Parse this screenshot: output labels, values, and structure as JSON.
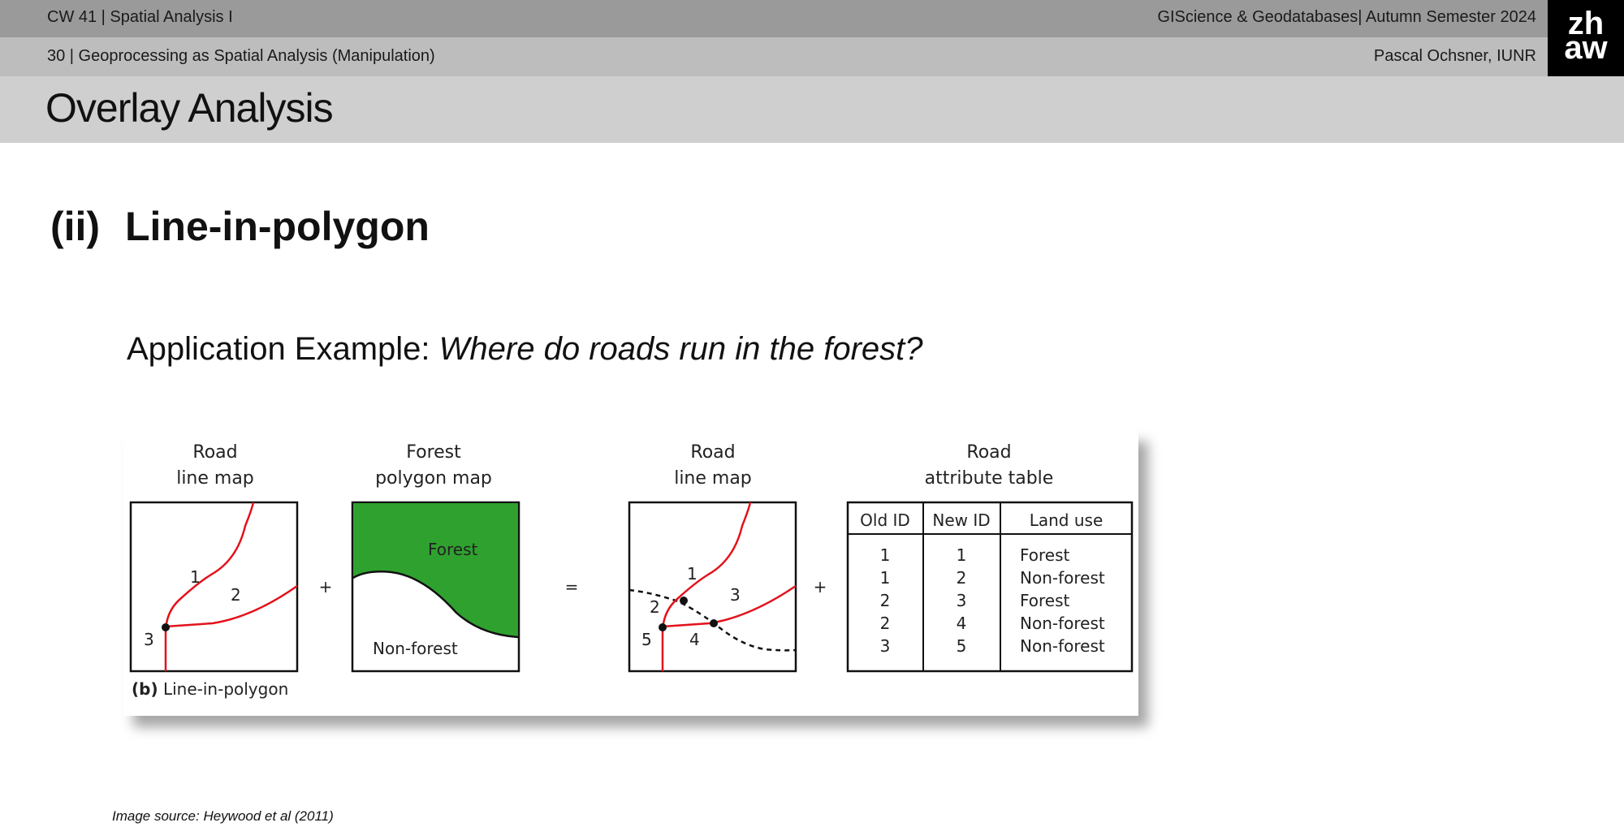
{
  "header": {
    "course_week": "CW 41 | Spatial Analysis I",
    "course_info": "GIScience & Geodatabases| Autumn Semester 2024",
    "slide_ref": "30 | Geoprocessing as Spatial Analysis (Manipulation)",
    "author": "Pascal Ochsner, IUNR",
    "logo_top": "zh",
    "logo_bottom": "aw"
  },
  "slide": {
    "title": "Overlay Analysis",
    "section_number": "(ii)",
    "section_title": "Line-in-polygon",
    "question_prefix": "Application Example: ",
    "question_italic": "Where do roads run in the forest?"
  },
  "figure": {
    "panel1_title_1": "Road",
    "panel1_title_2": "line map",
    "panel2_title_1": "Forest",
    "panel2_title_2": "polygon map",
    "panel3_title_1": "Road",
    "panel3_title_2": "line map",
    "panel4_title_1": "Road",
    "panel4_title_2": "attribute table",
    "plus_1": "+",
    "equals": "=",
    "plus_2": "+",
    "forest_label": "Forest",
    "nonforest_label": "Non-forest",
    "p1_labels": [
      "1",
      "2",
      "3"
    ],
    "p3_labels": [
      "1",
      "2",
      "3",
      "4",
      "5"
    ],
    "caption_bold": "(b)",
    "caption_text": " Line-in-polygon",
    "table": {
      "headers": [
        "Old ID",
        "New ID",
        "Land use"
      ],
      "rows": [
        [
          "1",
          "1",
          "Forest"
        ],
        [
          "1",
          "2",
          "Non-forest"
        ],
        [
          "2",
          "3",
          "Forest"
        ],
        [
          "2",
          "4",
          "Non-forest"
        ],
        [
          "3",
          "5",
          "Non-forest"
        ]
      ]
    },
    "colors": {
      "road": "#e3121b",
      "forest": "#2fa12f",
      "frame": "#111111"
    }
  },
  "source": "Image source: Heywood et al (2011)"
}
